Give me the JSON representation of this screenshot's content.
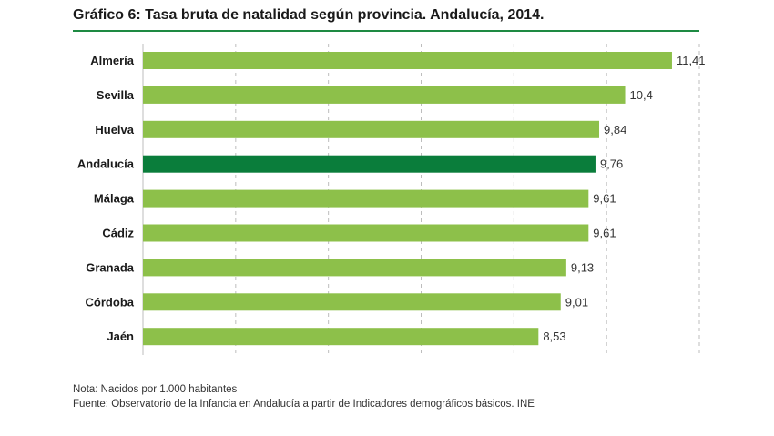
{
  "title": "Gráfico 6: Tasa bruta de natalidad según provincia. Andalucía, 2014.",
  "notes": {
    "nota": "Nota: Nacidos por 1.000 habitantes",
    "fuente": "Fuente: Observatorio de la Infancia en Andalucía a partir de Indicadores demográficos básicos. INE"
  },
  "colors": {
    "bar": "#8dc04a",
    "highlight": "#0a7d3b",
    "rule": "#1e8a43",
    "grid": "#bdbdbd"
  },
  "chart_data": {
    "type": "bar",
    "orientation": "horizontal",
    "title": "Gráfico 6: Tasa bruta de natalidad según provincia. Andalucía, 2014.",
    "categories": [
      "Almería",
      "Sevilla",
      "Huelva",
      "Andalucía",
      "Málaga",
      "Cádiz",
      "Granada",
      "Córdoba",
      "Jaén"
    ],
    "values": [
      11.41,
      10.4,
      9.84,
      9.76,
      9.61,
      9.61,
      9.13,
      9.01,
      8.53
    ],
    "value_labels": [
      "11,41",
      "10,4",
      "9,84",
      "9,76",
      "9,61",
      "9,61",
      "9,13",
      "9,01",
      "8,53"
    ],
    "highlight": "Andalucía",
    "xlim": [
      0,
      12
    ],
    "grid": "vertical dashed",
    "legend": "none"
  }
}
